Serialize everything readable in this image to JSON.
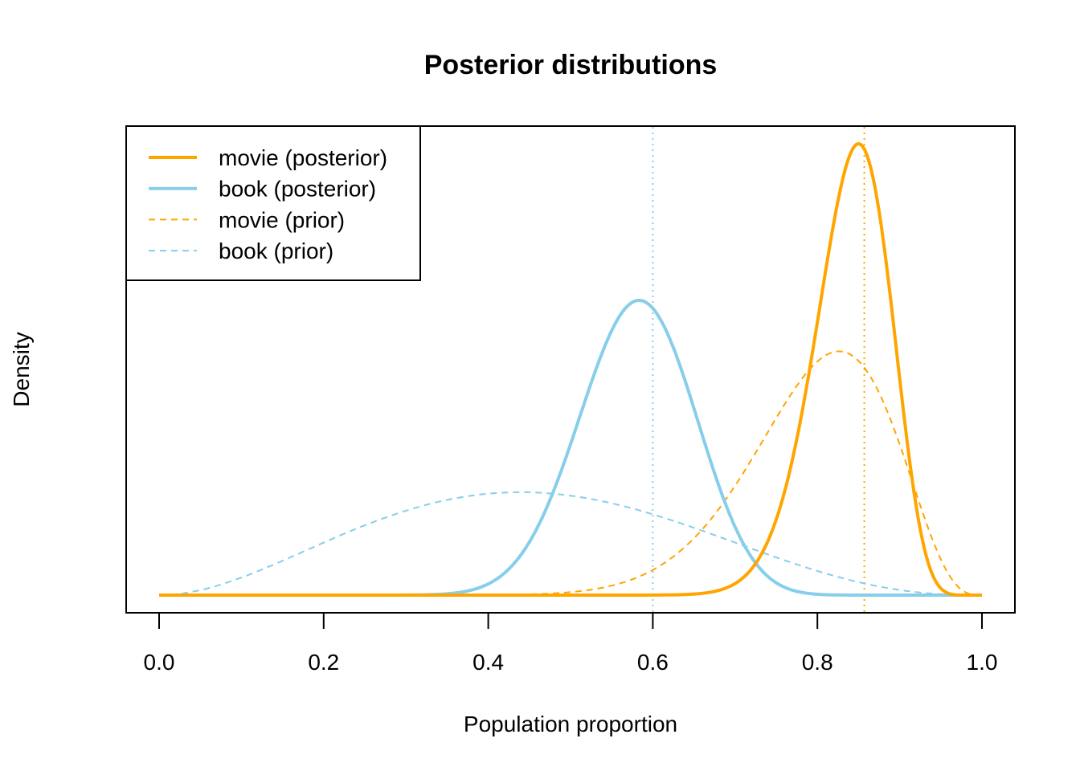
{
  "chart_data": {
    "type": "line",
    "title": "Posterior distributions",
    "xlabel": "Population proportion",
    "ylabel": "Density",
    "xlim": [
      0,
      1
    ],
    "x_ticks": [
      "0.0",
      "0.2",
      "0.4",
      "0.6",
      "0.8",
      "1.0"
    ],
    "x_tick_values": [
      0,
      0.2,
      0.4,
      0.6,
      0.8,
      1.0
    ],
    "y_ticks_shown": false,
    "grid": false,
    "legend_position": "top-left",
    "series": [
      {
        "name": "movie (posterior)",
        "distribution": "beta",
        "alpha": 52,
        "beta": 10,
        "color": "#FFA500",
        "style": "solid"
      },
      {
        "name": "book (posterior)",
        "distribution": "beta",
        "alpha": 29,
        "beta": 21,
        "color": "#87CEEB",
        "style": "solid"
      },
      {
        "name": "movie (prior)",
        "distribution": "beta",
        "alpha": 16.7,
        "beta": 4.3,
        "color": "#FFA500",
        "style": "dashed"
      },
      {
        "name": "book (prior)",
        "distribution": "beta",
        "alpha": 3.02,
        "beta": 3.58,
        "color": "#87CEEB",
        "style": "dashed"
      }
    ],
    "reference_lines": [
      {
        "x": 0.6,
        "color": "#87CEEB",
        "style": "dotted"
      },
      {
        "x": 0.857,
        "color": "#FFA500",
        "style": "dotted"
      }
    ]
  }
}
